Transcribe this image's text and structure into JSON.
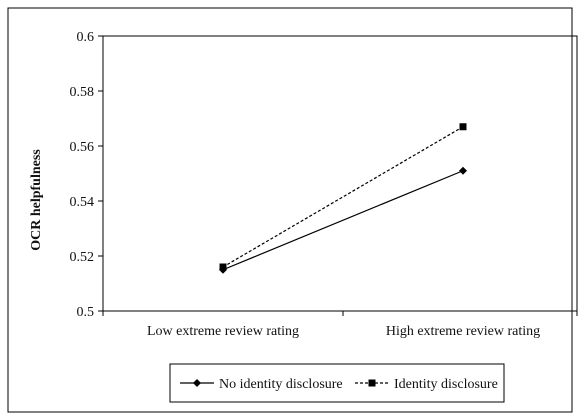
{
  "chart_data": {
    "type": "line",
    "title": "",
    "xlabel": "",
    "ylabel": "OCR helpfulness",
    "categories": [
      "Low extreme review rating",
      "High extreme review rating"
    ],
    "ylim": [
      0.5,
      0.6
    ],
    "yticks": [
      0.5,
      0.52,
      0.54,
      0.56,
      0.58,
      0.6
    ],
    "ytick_labels": [
      "0.5",
      "0.52",
      "0.54",
      "0.56",
      "0.58",
      "0.6"
    ],
    "grid": false,
    "legend_position": "bottom",
    "series": [
      {
        "name": "No identity disclosure",
        "values": [
          0.515,
          0.551
        ],
        "marker": "diamond",
        "line_style": "solid",
        "color": "#000000"
      },
      {
        "name": "Identity disclosure",
        "values": [
          0.516,
          0.567
        ],
        "marker": "square",
        "line_style": "dashed",
        "color": "#000000"
      }
    ]
  }
}
